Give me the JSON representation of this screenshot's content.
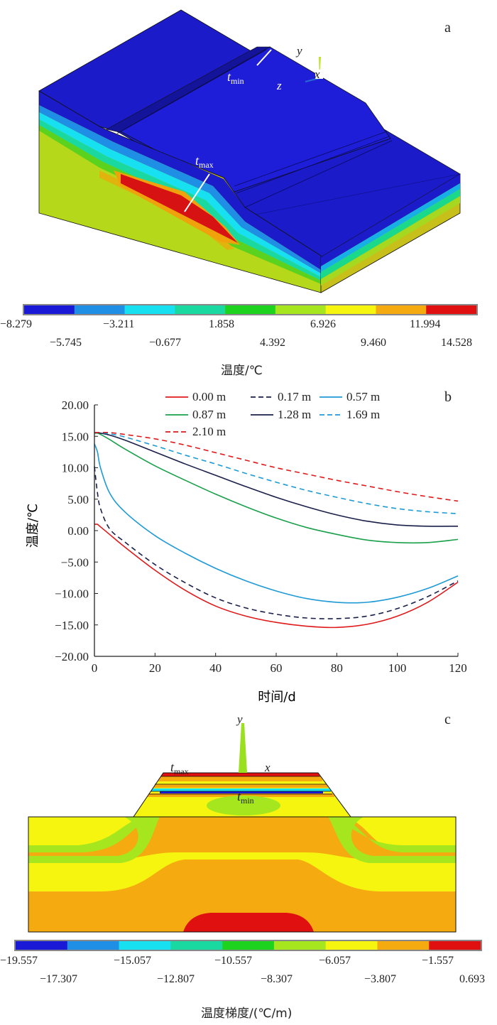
{
  "panel_a": {
    "letter": "a",
    "axis_labels": {
      "y": "y",
      "x": "x",
      "z": "z"
    },
    "tmin_label": {
      "t": "t",
      "sub": "min"
    },
    "tmax_label": {
      "t": "t",
      "sub": "max"
    },
    "colorbar": {
      "colors": [
        "#1a1ad6",
        "#1f8fe6",
        "#17e0f0",
        "#1ad9a0",
        "#1ed31e",
        "#a5e61e",
        "#f5f50f",
        "#f5aa0f",
        "#e01010"
      ],
      "ticks_top": [
        "−8.279",
        "−3.211",
        "1.858",
        "6.926",
        "11.994"
      ],
      "ticks_bottom": [
        "−5.745",
        "−0.677",
        "4.392",
        "9.460",
        "14.528"
      ],
      "title": "温度/℃"
    }
  },
  "panel_b": {
    "letter": "b",
    "chart_data": {
      "type": "line",
      "title": "",
      "xlabel": "时间/d",
      "ylabel": "温度/℃",
      "xlim": [
        0,
        120
      ],
      "ylim": [
        -20,
        20
      ],
      "x_ticks": [
        "0",
        "20",
        "40",
        "60",
        "80",
        "100",
        "120"
      ],
      "y_ticks": [
        "20.00",
        "15.00",
        "10.00",
        "5.00",
        "0.00",
        "−5.00",
        "−10.00",
        "−15.00",
        "−20.00"
      ],
      "x": [
        0,
        1,
        2,
        5,
        10,
        20,
        30,
        40,
        50,
        60,
        70,
        80,
        90,
        100,
        110,
        120
      ],
      "series": [
        {
          "name": "0.00 m",
          "color": "#e0191a",
          "dash": "solid",
          "values": [
            1.0,
            1.0,
            0.6,
            -0.6,
            -2.6,
            -6.3,
            -9.5,
            -12.0,
            -13.6,
            -14.6,
            -15.2,
            -15.4,
            -14.9,
            -13.6,
            -11.4,
            -8.2
          ]
        },
        {
          "name": "0.17 m",
          "color": "#1a1f4a",
          "dash": "dashed",
          "values": [
            10.2,
            6.0,
            3.5,
            0.3,
            -1.8,
            -5.4,
            -8.3,
            -10.7,
            -12.3,
            -13.3,
            -13.9,
            -14.0,
            -13.6,
            -12.4,
            -10.5,
            -8.0
          ]
        },
        {
          "name": "0.57 m",
          "color": "#1e9ad6",
          "dash": "solid",
          "values": [
            13.8,
            12.5,
            10.0,
            6.0,
            3.0,
            -0.8,
            -3.6,
            -6.0,
            -8.0,
            -9.6,
            -10.8,
            -11.4,
            -11.4,
            -10.6,
            -9.2,
            -7.2
          ]
        },
        {
          "name": "0.87 m",
          "color": "#1aa04a",
          "dash": "solid",
          "values": [
            15.5,
            15.5,
            15.3,
            14.5,
            13.0,
            10.3,
            8.0,
            5.8,
            3.8,
            2.0,
            0.5,
            -0.6,
            -1.5,
            -1.9,
            -1.9,
            -1.4
          ]
        },
        {
          "name": "1.28 m",
          "color": "#1a1f4a",
          "dash": "solid",
          "values": [
            15.6,
            15.6,
            15.5,
            15.2,
            14.4,
            12.5,
            10.6,
            8.8,
            7.0,
            5.3,
            3.8,
            2.5,
            1.5,
            0.9,
            0.7,
            0.7
          ]
        },
        {
          "name": "1.69 m",
          "color": "#1e9ad6",
          "dash": "dashed",
          "values": [
            15.6,
            15.6,
            15.6,
            15.4,
            14.9,
            13.5,
            12.0,
            10.6,
            9.1,
            7.7,
            6.4,
            5.3,
            4.3,
            3.5,
            3.0,
            2.7
          ]
        },
        {
          "name": "2.10 m",
          "color": "#e0191a",
          "dash": "dashed",
          "values": [
            15.6,
            15.6,
            15.6,
            15.6,
            15.3,
            14.6,
            13.6,
            12.4,
            11.2,
            10.0,
            9.0,
            8.0,
            7.1,
            6.2,
            5.4,
            4.7
          ]
        }
      ]
    }
  },
  "panel_c": {
    "letter": "c",
    "axis_labels": {
      "y": "y",
      "x": "x"
    },
    "tmax_label": {
      "t": "t",
      "sub": "max"
    },
    "tmin_label": {
      "t": "t",
      "sub": "min"
    },
    "colorbar": {
      "colors": [
        "#1a1ad6",
        "#1f8fe6",
        "#17e0f0",
        "#1ad9a0",
        "#1ed31e",
        "#a5e61e",
        "#f5f50f",
        "#f5aa0f",
        "#e01010"
      ],
      "ticks_top": [
        "−19.557",
        "−15.057",
        "−10.557",
        "−6.057",
        "−1.557"
      ],
      "ticks_bottom": [
        "−17.307",
        "−12.807",
        "−8.307",
        "−3.807",
        "0.693"
      ],
      "title": "温度梯度/(℃/m)"
    }
  }
}
